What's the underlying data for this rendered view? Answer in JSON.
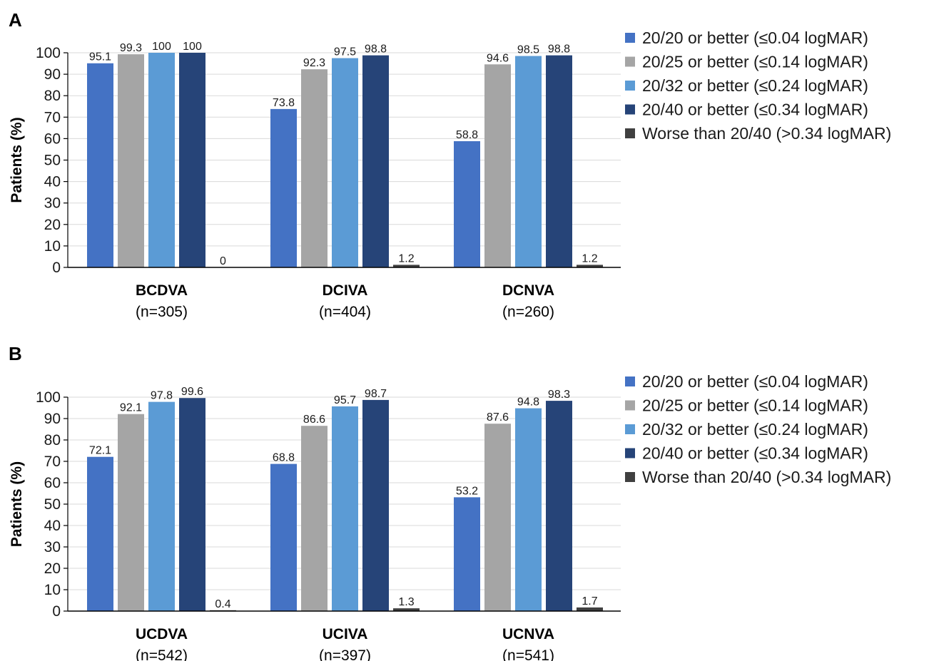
{
  "colors": {
    "series": [
      "#4472c4",
      "#a5a5a5",
      "#5b9bd5",
      "#264478",
      "#404040"
    ],
    "grid": "#d9d9d9",
    "axis": "#000000",
    "text": "#1a1a1a"
  },
  "legend_placement": "right",
  "chart_data": [
    {
      "type": "bar",
      "panel": "A",
      "ylabel": "Patients (%)",
      "ylim": [
        0,
        100
      ],
      "yticks": [
        0,
        10,
        20,
        30,
        40,
        50,
        60,
        70,
        80,
        90,
        100
      ],
      "grid": true,
      "categories": [
        {
          "name": "BCDVA",
          "n": "(n=305)"
        },
        {
          "name": "DCIVA",
          "n": "(n=404)"
        },
        {
          "name": "DCNVA",
          "n": "(n=260)"
        }
      ],
      "series": [
        {
          "name": "20/20 or better (≤0.04 logMAR)",
          "values": [
            95.1,
            73.8,
            58.8
          ]
        },
        {
          "name": "20/25 or better (≤0.14 logMAR)",
          "values": [
            99.3,
            92.3,
            94.6
          ]
        },
        {
          "name": "20/32 or better (≤0.24 logMAR)",
          "values": [
            100,
            97.5,
            98.5
          ]
        },
        {
          "name": "20/40 or better (≤0.34 logMAR)",
          "values": [
            100,
            98.8,
            98.8
          ]
        },
        {
          "name": "Worse than 20/40 (>0.34 logMAR)",
          "values": [
            0,
            1.2,
            1.2
          ]
        }
      ]
    },
    {
      "type": "bar",
      "panel": "B",
      "ylabel": "Patients (%)",
      "ylim": [
        0,
        100
      ],
      "yticks": [
        0,
        10,
        20,
        30,
        40,
        50,
        60,
        70,
        80,
        90,
        100
      ],
      "grid": true,
      "categories": [
        {
          "name": "UCDVA",
          "n": "(n=542)"
        },
        {
          "name": "UCIVA",
          "n": "(n=397)"
        },
        {
          "name": "UCNVA",
          "n": "(n=541)"
        }
      ],
      "series": [
        {
          "name": "20/20 or better (≤0.04 logMAR)",
          "values": [
            72.1,
            68.8,
            53.2
          ]
        },
        {
          "name": "20/25 or better (≤0.14 logMAR)",
          "values": [
            92.1,
            86.6,
            87.6
          ]
        },
        {
          "name": "20/32 or better (≤0.24 logMAR)",
          "values": [
            97.8,
            95.7,
            94.8
          ]
        },
        {
          "name": "20/40 or better (≤0.34 logMAR)",
          "values": [
            99.6,
            98.7,
            98.3
          ]
        },
        {
          "name": "Worse than 20/40 (>0.34 logMAR)",
          "values": [
            0.4,
            1.3,
            1.7
          ]
        }
      ]
    }
  ]
}
